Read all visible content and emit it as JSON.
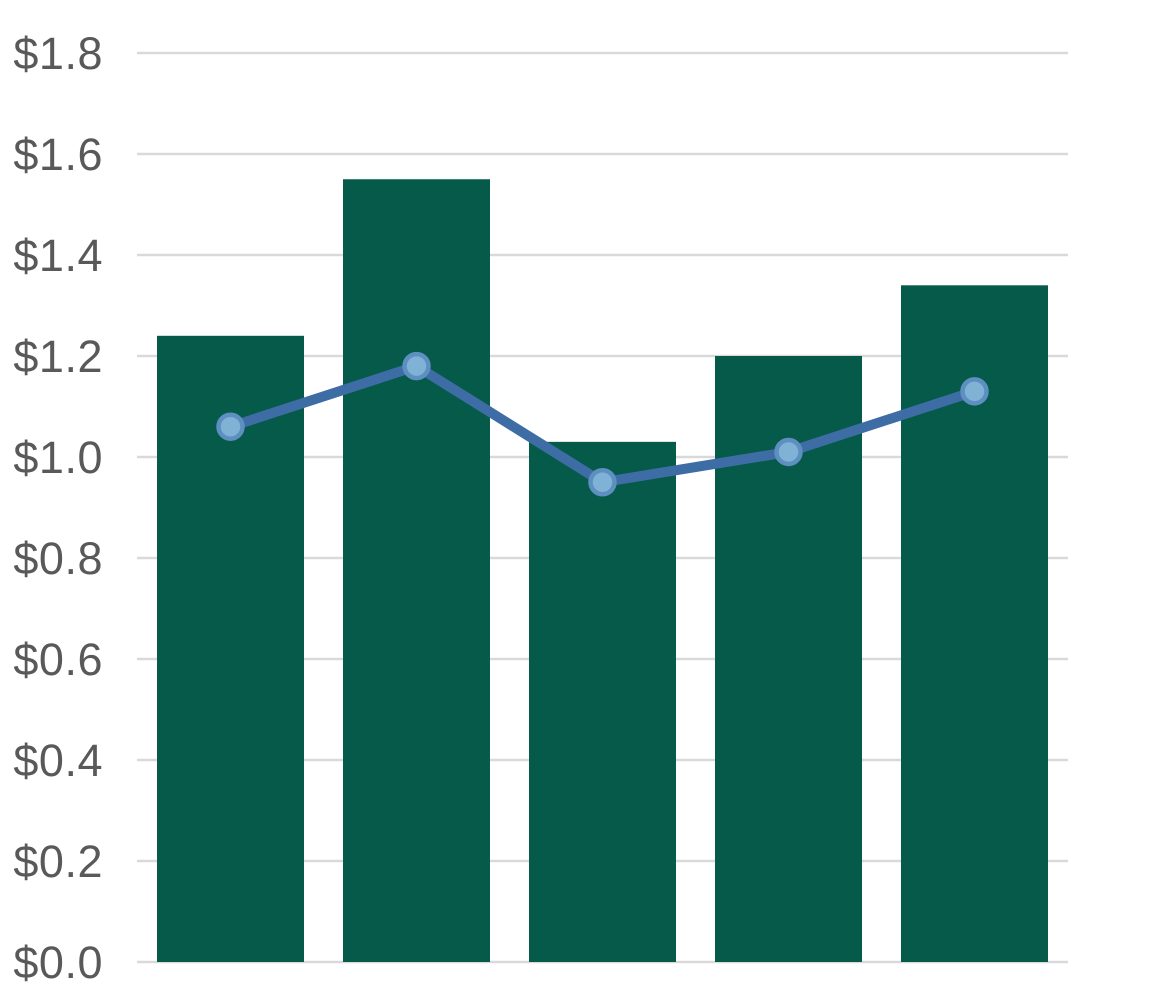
{
  "chart_data": {
    "type": "bar",
    "subtype": "bar-line-combo",
    "title": "",
    "subtitle": "",
    "xlabel": "",
    "ylabel": "",
    "categories": [
      "",
      "",
      "",
      "",
      ""
    ],
    "series": [
      {
        "name": "bars",
        "type": "bar",
        "values": [
          1.24,
          1.55,
          1.03,
          1.2,
          1.34
        ]
      },
      {
        "name": "line",
        "type": "line",
        "values": [
          1.06,
          1.18,
          0.95,
          1.01,
          1.13
        ]
      }
    ],
    "ylim": [
      0,
      1.8
    ],
    "ytick_interval": 0.2,
    "ytick_prefix": "$",
    "ytick_labels": [
      "$0.0",
      "$0.2",
      "$0.4",
      "$0.6",
      "$0.8",
      "$1.0",
      "$1.2",
      "$1.4",
      "$1.6",
      "$1.8"
    ],
    "grid": true,
    "legend": "none",
    "x_axis_labels_visible": false,
    "colors": {
      "background": "#FFFFFF",
      "bar_fill": "#055A4A",
      "line_stroke": "#3E6CA5",
      "marker_fill": "#7FB2D4",
      "marker_stroke": "#5D8FC0",
      "gridline": "#D9D9D9",
      "tick_label": "#595959"
    }
  }
}
